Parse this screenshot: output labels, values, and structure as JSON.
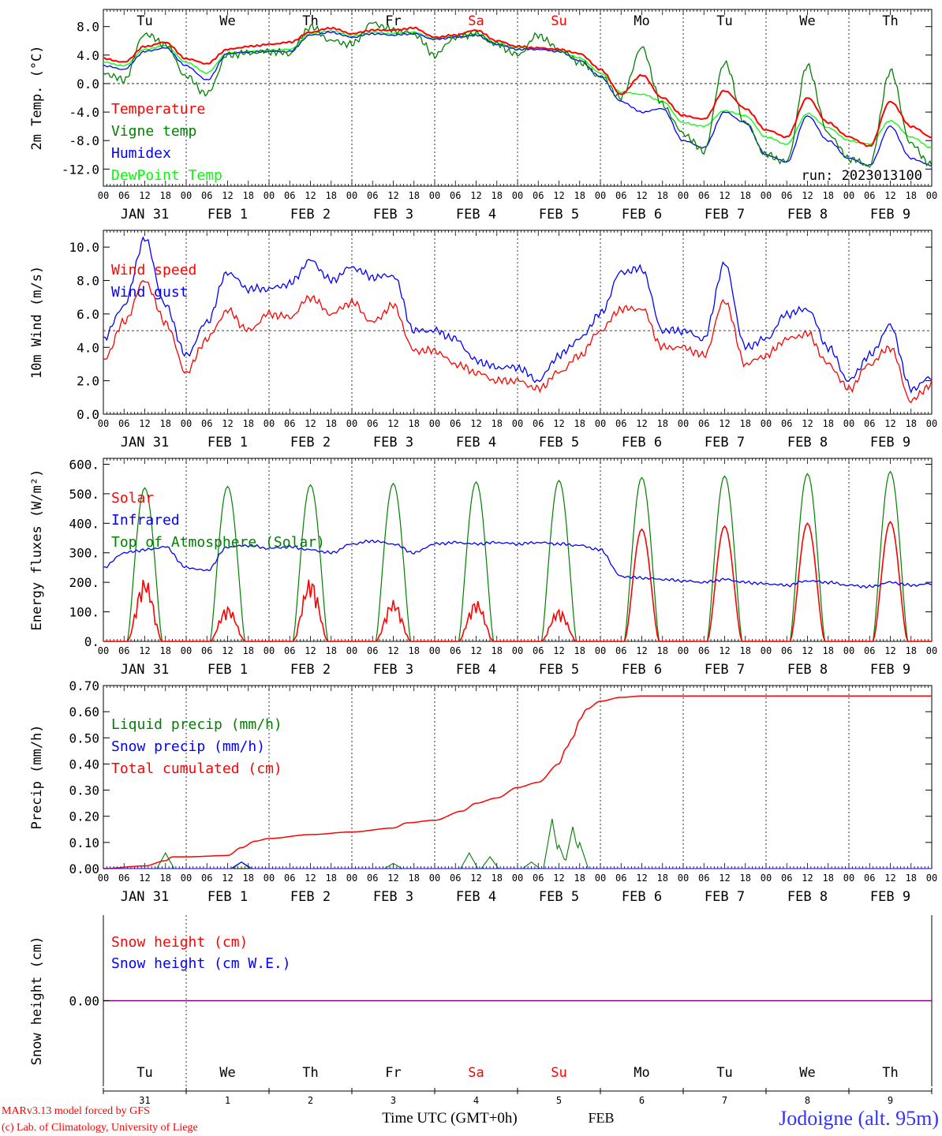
{
  "days_top": [
    {
      "label": "Tu",
      "color": "#000000"
    },
    {
      "label": "We",
      "color": "#000000"
    },
    {
      "label": "Th",
      "color": "#000000"
    },
    {
      "label": "Fr",
      "color": "#000000"
    },
    {
      "label": "Sa",
      "color": "#ff0000"
    },
    {
      "label": "Su",
      "color": "#ff0000"
    },
    {
      "label": "Mo",
      "color": "#000000"
    },
    {
      "label": "Tu",
      "color": "#000000"
    },
    {
      "label": "We",
      "color": "#000000"
    },
    {
      "label": "Th",
      "color": "#000000"
    }
  ],
  "hour_ticks": [
    "00",
    "06",
    "12",
    "18"
  ],
  "end_hour": "00",
  "date_labels": [
    "JAN 31",
    "FEB  1",
    "FEB  2",
    "FEB  3",
    "FEB  4",
    "FEB  5",
    "FEB  6",
    "FEB  7",
    "FEB  8",
    "FEB  9"
  ],
  "bottom_day_numbers": [
    "31",
    "1",
    "2",
    "3",
    "4",
    "5",
    "6",
    "7",
    "8",
    "9"
  ],
  "footer": {
    "model": "MARv3.13 model forced by GFS",
    "copyright": "(c) Lab. of Climatology, University of Liege",
    "axis_title": "Time UTC (GMT+0h)",
    "month": "FEB",
    "station": "Jodoigne (alt. 95m)"
  },
  "colors": {
    "red": "#ff0000",
    "green": "#008000",
    "blue": "#0000ff",
    "lime": "#00ff00",
    "purple": "#800080",
    "footer_blue": "#3333ff"
  },
  "chart_data": [
    {
      "type": "line",
      "ylabel": "2m Temp. (°C)",
      "ylim": [
        -14.4,
        10.4
      ],
      "yticks": [
        8,
        4,
        0,
        -4,
        -8,
        -12
      ],
      "ytick_labels": [
        "8.0",
        "4.0",
        "0.0",
        "-4.0",
        "-8.0",
        "-12.0"
      ],
      "ref_line": 0,
      "annotation": "run: 2023013100",
      "x_hours": [
        0,
        6,
        12,
        18,
        24,
        30,
        36,
        42,
        48,
        54,
        60,
        66,
        72,
        78,
        84,
        90,
        96,
        102,
        108,
        114,
        120,
        126,
        132,
        138,
        144,
        150,
        156,
        162,
        168,
        174,
        180,
        186,
        192,
        198,
        204,
        210,
        216,
        222,
        228,
        234,
        240
      ],
      "series": [
        {
          "name": "Temperature",
          "color": "#ff0000",
          "values": [
            3.5,
            3,
            5.2,
            5.8,
            3.5,
            2.8,
            4.8,
            5.2,
            5.5,
            5.8,
            7.2,
            7.8,
            7.0,
            7.5,
            7.5,
            7.8,
            6.5,
            6.8,
            7.5,
            6.0,
            5.2,
            5.0,
            4.8,
            4.2,
            2.0,
            -1.5,
            1.2,
            -2.0,
            -4.5,
            -5.0,
            -1.0,
            -3.5,
            -6.5,
            -7.5,
            -2.0,
            -5.5,
            -7.5,
            -8.8,
            -2.5,
            -6.0,
            -7.5
          ]
        },
        {
          "name": "Vigne temp",
          "color": "#008000",
          "values": [
            1.5,
            0.5,
            7.0,
            5.5,
            1.0,
            -1.5,
            4.0,
            4.3,
            4.5,
            4.2,
            8.0,
            6.0,
            5.5,
            8.5,
            7.5,
            7.0,
            4.0,
            6.5,
            7.0,
            5.5,
            4.0,
            6.8,
            4.8,
            3.0,
            1.0,
            -2.0,
            5.0,
            -3.0,
            -7.0,
            -9.5,
            3.0,
            -5.5,
            -10.0,
            -11.0,
            2.5,
            -7.0,
            -10.5,
            -11.5,
            1.8,
            -8.5,
            -11.5
          ]
        },
        {
          "name": "Humidex",
          "color": "#0000ff",
          "values": [
            2.5,
            2.0,
            4.5,
            5.0,
            2.5,
            0.5,
            4.2,
            4.4,
            4.5,
            4.5,
            6.8,
            7.2,
            6.5,
            7.0,
            6.8,
            7.0,
            6.2,
            6.5,
            6.8,
            5.5,
            4.8,
            4.8,
            4.5,
            3.2,
            1.0,
            -2.5,
            -4.0,
            -3.5,
            -8.0,
            -9.0,
            -4.0,
            -5.5,
            -10.0,
            -11.0,
            -4.5,
            -8.0,
            -10.5,
            -11.5,
            -6.0,
            -10.5,
            -11.5
          ]
        },
        {
          "name": "DewPoint Temp",
          "color": "#00ff00",
          "values": [
            3.0,
            2.5,
            4.8,
            5.3,
            3.0,
            1.5,
            4.3,
            4.5,
            4.7,
            4.8,
            7.0,
            7.4,
            6.7,
            7.2,
            7.0,
            7.2,
            6.3,
            6.6,
            7.0,
            5.7,
            5.0,
            4.9,
            4.6,
            3.6,
            1.5,
            -1.2,
            -1.5,
            -2.5,
            -5.5,
            -6.0,
            -3.8,
            -4.5,
            -7.5,
            -8.5,
            -4.2,
            -6.2,
            -8.0,
            -8.5,
            -5.2,
            -7.5,
            -9.0
          ]
        }
      ]
    },
    {
      "type": "line",
      "ylabel": "10m Wind (m/s)",
      "ylim": [
        0,
        11.0
      ],
      "yticks": [
        0,
        2,
        4,
        6,
        8,
        10
      ],
      "ytick_labels": [
        "0.0",
        "2.0",
        "4.0",
        "6.0",
        "8.0",
        "10.0"
      ],
      "ref_line": 5,
      "x_hours": [
        0,
        6,
        12,
        18,
        24,
        30,
        36,
        42,
        48,
        54,
        60,
        66,
        72,
        78,
        84,
        90,
        96,
        102,
        108,
        114,
        120,
        126,
        132,
        138,
        144,
        150,
        156,
        162,
        168,
        174,
        180,
        186,
        192,
        198,
        204,
        210,
        216,
        222,
        228,
        234,
        240
      ],
      "series": [
        {
          "name": "Wind speed",
          "color": "#ff0000",
          "values": [
            3.2,
            5.5,
            8.0,
            5.5,
            2.5,
            4.5,
            6.2,
            5.0,
            6.0,
            5.8,
            7.0,
            6.0,
            6.7,
            5.5,
            6.5,
            3.8,
            3.8,
            3.0,
            2.5,
            2.0,
            2.0,
            1.5,
            2.5,
            3.5,
            5.0,
            6.3,
            6.3,
            4.0,
            4.0,
            3.5,
            6.8,
            3.0,
            3.5,
            4.5,
            4.8,
            3.0,
            1.5,
            3.0,
            4.0,
            0.8,
            1.8
          ]
        },
        {
          "name": "Wind gust",
          "color": "#0000ff",
          "values": [
            4.5,
            6.5,
            10.5,
            6.5,
            3.5,
            5.5,
            8.5,
            7.5,
            7.5,
            7.8,
            9.2,
            8.0,
            8.8,
            8.2,
            8.3,
            5.0,
            5.0,
            4.5,
            3.2,
            2.8,
            2.8,
            2.0,
            3.5,
            4.5,
            6.0,
            8.5,
            8.7,
            5.0,
            5.0,
            4.5,
            9.0,
            4.0,
            4.5,
            6.0,
            6.3,
            4.0,
            2.0,
            3.5,
            5.3,
            1.5,
            2.2
          ]
        }
      ]
    },
    {
      "type": "area",
      "ylabel": "Energy fluxes (W/m²)",
      "ylim": [
        0,
        620
      ],
      "yticks": [
        0,
        100,
        200,
        300,
        400,
        500,
        600
      ],
      "ytick_labels": [
        "0.",
        "100.",
        "200.",
        "300.",
        "400.",
        "500.",
        "600."
      ],
      "toa_peaks": [
        520,
        525,
        530,
        535,
        540,
        545,
        555,
        560,
        568,
        575
      ],
      "solar_peaks": [
        215,
        120,
        215,
        140,
        140,
        110,
        380,
        390,
        400,
        405
      ],
      "infrared": {
        "x_hours": [
          0,
          6,
          12,
          18,
          24,
          30,
          36,
          42,
          48,
          54,
          60,
          66,
          72,
          78,
          84,
          90,
          96,
          102,
          108,
          114,
          120,
          126,
          132,
          138,
          144,
          150,
          156,
          162,
          168,
          174,
          180,
          186,
          192,
          198,
          204,
          210,
          216,
          222,
          228,
          234,
          240
        ],
        "values": [
          250,
          300,
          310,
          320,
          250,
          240,
          320,
          325,
          315,
          320,
          310,
          300,
          330,
          340,
          330,
          300,
          330,
          335,
          330,
          335,
          330,
          335,
          330,
          325,
          310,
          220,
          215,
          210,
          205,
          200,
          210,
          200,
          195,
          190,
          205,
          200,
          190,
          185,
          200,
          190,
          195
        ]
      },
      "series": [
        {
          "name": "Solar",
          "color": "#ff0000"
        },
        {
          "name": "Infrared",
          "color": "#0000ff"
        },
        {
          "name": "Top of Atmosphere (Solar)",
          "color": "#008000"
        }
      ]
    },
    {
      "type": "line",
      "ylabel": "Precip (mm/h)",
      "ylim": [
        0,
        0.7
      ],
      "yticks": [
        0,
        0.1,
        0.2,
        0.3,
        0.4,
        0.5,
        0.6,
        0.7
      ],
      "ytick_labels": [
        "0.00",
        "0.10",
        "0.20",
        "0.30",
        "0.40",
        "0.50",
        "0.60",
        "0.70"
      ],
      "cumulated": {
        "x_hours": [
          0,
          12,
          18,
          20,
          24,
          36,
          40,
          44,
          48,
          60,
          72,
          84,
          88,
          96,
          104,
          108,
          114,
          120,
          126,
          132,
          134,
          136,
          138,
          140,
          144,
          150,
          156,
          168,
          240
        ],
        "values": [
          0,
          0.01,
          0.03,
          0.045,
          0.045,
          0.05,
          0.08,
          0.105,
          0.115,
          0.13,
          0.14,
          0.155,
          0.175,
          0.185,
          0.22,
          0.25,
          0.27,
          0.31,
          0.33,
          0.4,
          0.46,
          0.5,
          0.57,
          0.61,
          0.64,
          0.655,
          0.66,
          0.66,
          0.66
        ]
      },
      "liquid_events": [
        {
          "hour": 18,
          "value": 0.06
        },
        {
          "hour": 40,
          "value": 0.025
        },
        {
          "hour": 84,
          "value": 0.02
        },
        {
          "hour": 106,
          "value": 0.06
        },
        {
          "hour": 112,
          "value": 0.045
        },
        {
          "hour": 124,
          "value": 0.025
        },
        {
          "hour": 130,
          "value": 0.19
        },
        {
          "hour": 132,
          "value": 0.09
        },
        {
          "hour": 136,
          "value": 0.16
        },
        {
          "hour": 138,
          "value": 0.1
        }
      ],
      "snow_events": [
        {
          "hour": 40,
          "value": 0.025
        }
      ],
      "series": [
        {
          "name": "Liquid precip (mm/h)",
          "color": "#008000"
        },
        {
          "name": "Snow precip (mm/h)",
          "color": "#0000ff"
        },
        {
          "name": "Total cumulated (cm)",
          "color": "#ff0000"
        }
      ]
    },
    {
      "type": "line",
      "ylabel": "Snow height (cm)",
      "ylim": [
        -1,
        1
      ],
      "yticks": [
        0
      ],
      "ytick_labels": [
        "0.00"
      ],
      "series": [
        {
          "name": "Snow height (cm)",
          "color": "#ff0000",
          "values": [
            0,
            0
          ]
        },
        {
          "name": "Snow height (cm W.E.)",
          "color": "#0000ff",
          "values": [
            0,
            0
          ]
        }
      ]
    }
  ]
}
